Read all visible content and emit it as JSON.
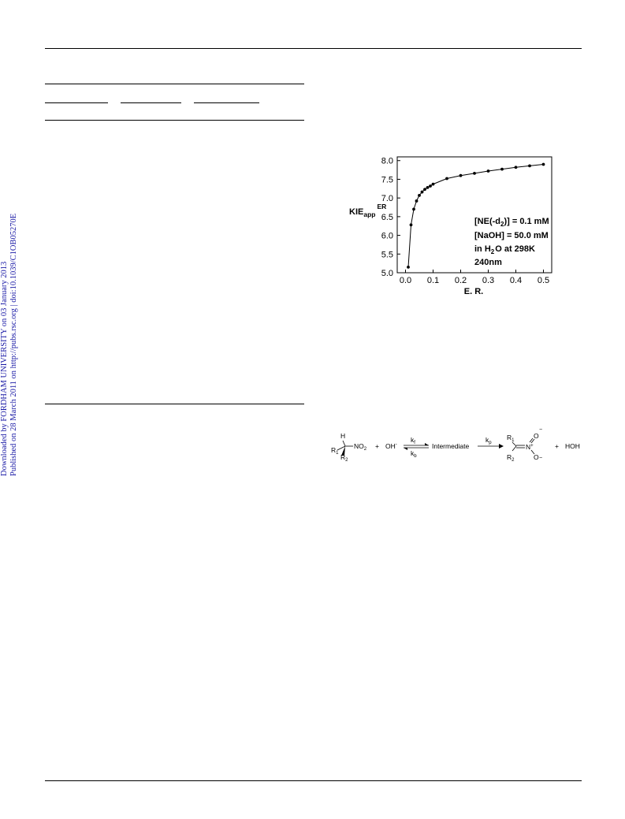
{
  "watermark": {
    "line1": "Downloaded by FORDHAM UNIVERSITY on 03 January 2013",
    "line2": "Published on 28 March 2011 on http://pubs.rsc.org | doi:10.1039/C1OB05270E"
  },
  "figure": {
    "ylabel_main": "KIE",
    "ylabel_sub": "app",
    "ylabel_sup": "ER",
    "xlabel": "E. R.",
    "annotation": {
      "line1_a": "[NE(-d",
      "line1_sub": "2",
      "line1_b": ")] = 0.1 mM",
      "line2": "[NaOH] = 50.0 mM",
      "line3_a": "in H",
      "line3_sub": "2",
      "line3_b": "O at 298K",
      "line4": "240nm"
    }
  },
  "chart_data": {
    "type": "line",
    "title": "",
    "xlabel": "E. R.",
    "ylabel": "KIE app ER",
    "xlim": [
      -0.03,
      0.53
    ],
    "ylim": [
      5.0,
      8.1
    ],
    "x_ticks": [
      "0.0",
      "0.1",
      "0.2",
      "0.3",
      "0.4",
      "0.5"
    ],
    "y_ticks": [
      "5.0",
      "5.5",
      "6.0",
      "6.5",
      "7.0",
      "7.5",
      "8.0"
    ],
    "grid": false,
    "markers": true,
    "series": [
      {
        "x": [
          0.01,
          0.02,
          0.03,
          0.04,
          0.05,
          0.06,
          0.07,
          0.08,
          0.09,
          0.1,
          0.15,
          0.2,
          0.25,
          0.3,
          0.35,
          0.4,
          0.45,
          0.5
        ],
        "values": [
          5.15,
          6.28,
          6.7,
          6.92,
          7.07,
          7.16,
          7.23,
          7.28,
          7.32,
          7.37,
          7.52,
          7.6,
          7.66,
          7.72,
          7.77,
          7.82,
          7.86,
          7.9
        ]
      }
    ]
  },
  "scheme": {
    "reactant_H": "H",
    "reactant_R1": "R",
    "reactant_R1_sub": "1",
    "reactant_R2": "R",
    "reactant_R2_sub": "2",
    "reactant_group_a": "NO",
    "reactant_group_sub": "2",
    "plus1": "+",
    "hydroxide": "OH",
    "hydroxide_charge": "-",
    "kf": "k",
    "kf_sub": "f",
    "kb": "k",
    "kb_sub": "b",
    "intermediate": "Intermediate",
    "kp": "k",
    "kp_sub": "p",
    "product_R1": "R",
    "product_R1_sub": "1",
    "product_R2": "R",
    "product_R2_sub": "2",
    "product_N": "N",
    "product_N_charge": "+",
    "product_O_top": "O",
    "product_O_bottom": "O",
    "minus": "−",
    "plus2": "+",
    "water": "HOH"
  }
}
